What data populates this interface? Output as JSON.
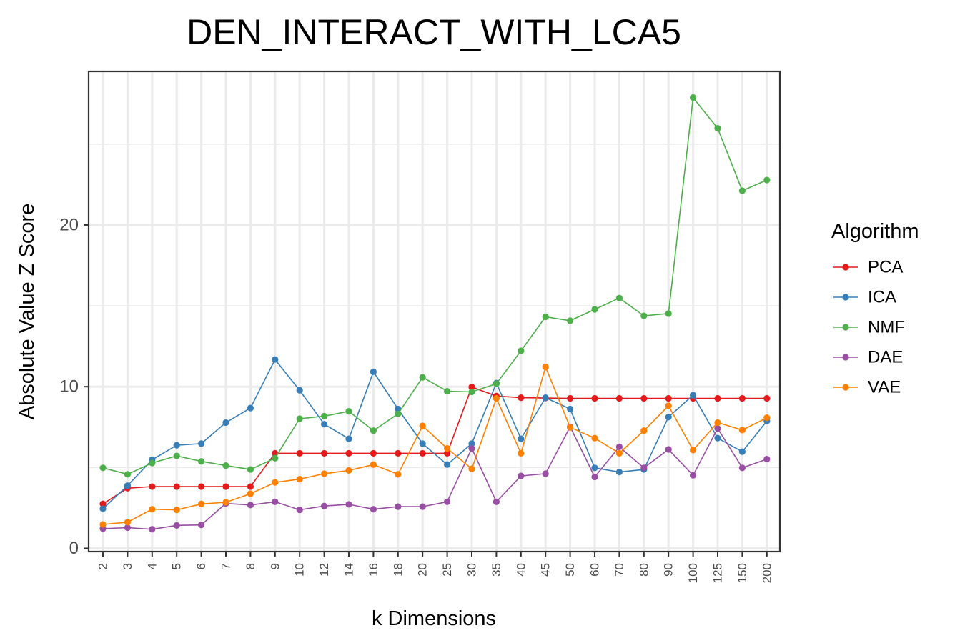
{
  "chart_data": {
    "type": "line",
    "title": "DEN_INTERACT_WITH_LCA5",
    "xlabel": "k Dimensions",
    "ylabel": "Absolute Value Z Score",
    "categories": [
      "2",
      "3",
      "4",
      "5",
      "6",
      "7",
      "8",
      "9",
      "10",
      "12",
      "14",
      "16",
      "18",
      "20",
      "25",
      "30",
      "35",
      "40",
      "45",
      "50",
      "60",
      "70",
      "80",
      "90",
      "100",
      "125",
      "150",
      "200"
    ],
    "y_ticks": [
      "0",
      "10",
      "20"
    ],
    "ylim": [
      -0.2,
      29.5
    ],
    "grid": true,
    "legend_title": "Algorithm",
    "legend_position": "right",
    "series": [
      {
        "name": "PCA",
        "color": "#e41a1c",
        "values": [
          2.75,
          3.72,
          3.82,
          3.82,
          3.82,
          3.82,
          3.82,
          5.88,
          5.88,
          5.88,
          5.88,
          5.88,
          5.88,
          5.88,
          5.88,
          9.98,
          9.42,
          9.32,
          9.3,
          9.28,
          9.28,
          9.28,
          9.28,
          9.28,
          9.28,
          9.28,
          9.28,
          9.28
        ]
      },
      {
        "name": "ICA",
        "color": "#377eb8",
        "values": [
          2.45,
          3.88,
          5.48,
          6.38,
          6.48,
          7.78,
          8.68,
          11.68,
          9.78,
          7.68,
          6.78,
          10.92,
          8.62,
          6.48,
          5.18,
          6.48,
          10.22,
          6.78,
          9.32,
          8.62,
          4.98,
          4.72,
          4.88,
          8.12,
          9.48,
          6.82,
          5.98,
          7.88
        ]
      },
      {
        "name": "NMF",
        "color": "#4daf4a",
        "values": [
          4.98,
          4.58,
          5.28,
          5.72,
          5.38,
          5.12,
          4.88,
          5.58,
          8.02,
          8.18,
          8.48,
          7.28,
          8.32,
          10.58,
          9.72,
          9.68,
          10.18,
          12.22,
          14.32,
          14.08,
          14.78,
          15.48,
          14.38,
          14.52,
          27.88,
          25.98,
          22.12,
          22.78
        ]
      },
      {
        "name": "DAE",
        "color": "#984ea3",
        "values": [
          1.22,
          1.28,
          1.18,
          1.42,
          1.45,
          2.78,
          2.68,
          2.88,
          2.38,
          2.62,
          2.72,
          2.42,
          2.58,
          2.58,
          2.88,
          6.18,
          2.88,
          4.48,
          4.62,
          7.52,
          4.42,
          6.28,
          4.98,
          6.12,
          4.52,
          7.42,
          4.98,
          5.52
        ]
      },
      {
        "name": "VAE",
        "color": "#ff7f00",
        "values": [
          1.48,
          1.62,
          2.42,
          2.38,
          2.75,
          2.85,
          3.38,
          4.08,
          4.28,
          4.62,
          4.82,
          5.18,
          4.58,
          7.58,
          6.18,
          4.92,
          9.28,
          5.88,
          11.22,
          7.48,
          6.82,
          5.88,
          7.28,
          8.82,
          6.08,
          7.78,
          7.32,
          8.08
        ]
      }
    ]
  }
}
